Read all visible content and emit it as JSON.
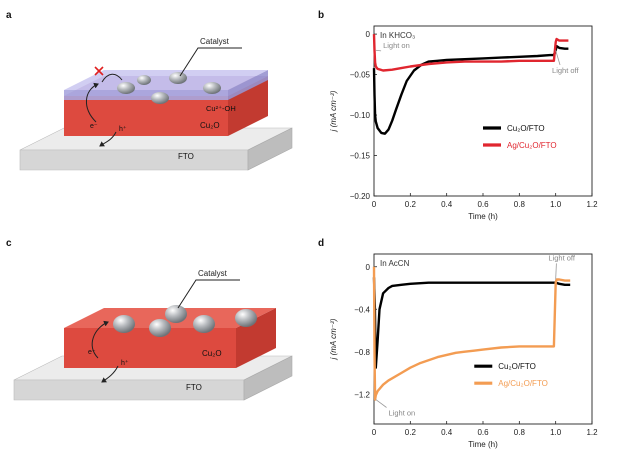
{
  "figure": {
    "panels": {
      "a": {
        "letter": "a",
        "labels": {
          "catalyst": "Catalyst",
          "cu_oh": "Cu²⁺-OH",
          "cu2o": "Cu₂O",
          "fto": "FTO",
          "electron": "e⁻",
          "hole": "h⁺"
        }
      },
      "b": {
        "letter": "b"
      },
      "c": {
        "letter": "c",
        "labels": {
          "catalyst": "Catalyst",
          "cu2o": "Cu₂O",
          "fto": "FTO",
          "electron": "e⁻",
          "hole": "h⁺"
        }
      },
      "d": {
        "letter": "d"
      }
    },
    "colors": {
      "cu2o_layer": "#dd4a3f",
      "fto_layer": "#d6d6d6",
      "catalyst_sphere": "#9ea2a7",
      "ag_series_b": "#e0262f",
      "ag_series_d": "#f39c52",
      "cu2o_series": "#000000"
    }
  },
  "chart_data": [
    {
      "id": "b",
      "type": "line",
      "annotation": "In KHCO₃",
      "xlabel": "Time (h)",
      "ylabel": "j (mA cm⁻²)",
      "xlim": [
        0,
        1.2
      ],
      "ylim": [
        -0.2,
        0.01
      ],
      "xticks": [
        "0",
        "0.2",
        "0.4",
        "0.6",
        "0.8",
        "1.0",
        "1.2"
      ],
      "yticks": [
        "0",
        "−0.05",
        "−0.10",
        "−0.15",
        "−0.20"
      ],
      "ytick_values": [
        0,
        -0.05,
        -0.1,
        -0.15,
        -0.2
      ],
      "callouts": {
        "light_on": "Light on",
        "light_off": "Light off"
      },
      "legend_position": "lower-right",
      "series": [
        {
          "name": "Cu₂O/FTO",
          "color": "#000000",
          "x": [
            0,
            0.003,
            0.006,
            0.01,
            0.02,
            0.04,
            0.06,
            0.08,
            0.1,
            0.12,
            0.15,
            0.18,
            0.22,
            0.26,
            0.3,
            0.35,
            0.4,
            0.5,
            0.6,
            0.7,
            0.8,
            0.9,
            0.97,
            0.99,
            1.0,
            1.005,
            1.02,
            1.05,
            1.07
          ],
          "values": [
            -0.042,
            -0.075,
            -0.1,
            -0.108,
            -0.116,
            -0.122,
            -0.123,
            -0.118,
            -0.107,
            -0.094,
            -0.075,
            -0.058,
            -0.045,
            -0.038,
            -0.034,
            -0.033,
            -0.032,
            -0.031,
            -0.03,
            -0.029,
            -0.028,
            -0.027,
            -0.026,
            -0.026,
            -0.02,
            -0.015,
            -0.017,
            -0.018,
            -0.018
          ]
        },
        {
          "name": "Ag/Cu₂O/FTO",
          "color": "#e0262f",
          "x": [
            0,
            0.003,
            0.006,
            0.01,
            0.02,
            0.05,
            0.1,
            0.15,
            0.2,
            0.3,
            0.4,
            0.5,
            0.6,
            0.7,
            0.8,
            0.9,
            0.97,
            0.99,
            1.0,
            1.005,
            1.02,
            1.05,
            1.07
          ],
          "values": [
            0.0,
            -0.02,
            -0.035,
            -0.04,
            -0.043,
            -0.045,
            -0.044,
            -0.042,
            -0.04,
            -0.037,
            -0.035,
            -0.034,
            -0.034,
            -0.034,
            -0.033,
            -0.033,
            -0.033,
            -0.033,
            -0.01,
            -0.006,
            -0.008,
            -0.008,
            -0.008
          ]
        }
      ]
    },
    {
      "id": "d",
      "type": "line",
      "annotation": "In AcCN",
      "xlabel": "Time (h)",
      "ylabel": "j (mA cm⁻²)",
      "xlim": [
        0,
        1.2
      ],
      "ylim": [
        -1.48,
        0.12
      ],
      "xticks": [
        "0",
        "0.2",
        "0.4",
        "0.6",
        "0.8",
        "1.0",
        "1.2"
      ],
      "yticks": [
        "0",
        "−0.4",
        "−0.8",
        "−1.2"
      ],
      "ytick_values": [
        0,
        -0.4,
        -0.8,
        -1.2
      ],
      "callouts": {
        "light_on": "Light on",
        "light_off": "Light off"
      },
      "legend_position": "lower-right",
      "series": [
        {
          "name": "Cu₂O/FTO",
          "color": "#000000",
          "x": [
            0,
            0.005,
            0.01,
            0.02,
            0.03,
            0.05,
            0.08,
            0.1,
            0.15,
            0.2,
            0.3,
            0.4,
            0.5,
            0.6,
            0.7,
            0.8,
            0.9,
            0.97,
            1.0,
            1.02,
            1.05,
            1.08
          ],
          "values": [
            -0.1,
            -0.4,
            -0.95,
            -0.7,
            -0.4,
            -0.25,
            -0.2,
            -0.18,
            -0.17,
            -0.16,
            -0.15,
            -0.15,
            -0.15,
            -0.15,
            -0.15,
            -0.15,
            -0.15,
            -0.15,
            -0.15,
            -0.16,
            -0.17,
            -0.17
          ]
        },
        {
          "name": "Ag/Cu₂O/FTO",
          "color": "#f39c52",
          "x": [
            0,
            0.003,
            0.006,
            0.01,
            0.02,
            0.05,
            0.08,
            0.1,
            0.15,
            0.2,
            0.25,
            0.3,
            0.35,
            0.4,
            0.45,
            0.5,
            0.55,
            0.6,
            0.7,
            0.8,
            0.9,
            0.97,
            0.99,
            1.0,
            1.005,
            1.02,
            1.05,
            1.08
          ],
          "values": [
            0.0,
            -0.8,
            -1.25,
            -1.21,
            -1.17,
            -1.11,
            -1.07,
            -1.05,
            -1.0,
            -0.95,
            -0.91,
            -0.88,
            -0.85,
            -0.83,
            -0.81,
            -0.8,
            -0.79,
            -0.78,
            -0.76,
            -0.75,
            -0.75,
            -0.75,
            -0.75,
            -0.15,
            -0.12,
            -0.12,
            -0.13,
            -0.13
          ]
        }
      ]
    }
  ]
}
